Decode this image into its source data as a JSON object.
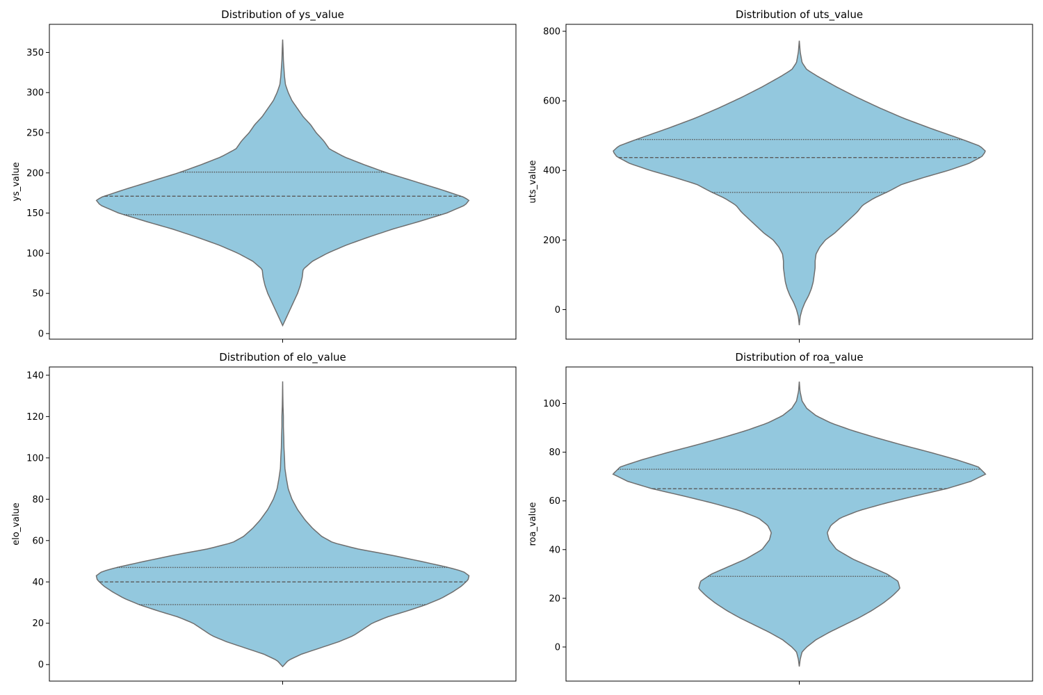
{
  "colors": {
    "violin_fill": "#93c8de",
    "violin_edge": "#6e6e6e",
    "quartile_line": "#5a5a5a",
    "axis": "#000000",
    "background": "#ffffff"
  },
  "chart_data": [
    {
      "type": "violin",
      "title": "Distribution of ys_value",
      "xlabel": "",
      "ylabel": "ys_value",
      "ylim": [
        -7,
        385
      ],
      "yticks": [
        0,
        50,
        100,
        150,
        200,
        250,
        300,
        350
      ],
      "grid": false,
      "inner": "quartile",
      "quartiles": [
        148,
        171,
        201
      ],
      "density_profile": [
        [
          10,
          0.0
        ],
        [
          20,
          0.02
        ],
        [
          30,
          0.04
        ],
        [
          40,
          0.06
        ],
        [
          50,
          0.08
        ],
        [
          60,
          0.095
        ],
        [
          70,
          0.105
        ],
        [
          80,
          0.11
        ],
        [
          90,
          0.16
        ],
        [
          100,
          0.24
        ],
        [
          110,
          0.34
        ],
        [
          120,
          0.46
        ],
        [
          130,
          0.59
        ],
        [
          140,
          0.74
        ],
        [
          150,
          0.88
        ],
        [
          160,
          0.98
        ],
        [
          166,
          1.0
        ],
        [
          170,
          0.97
        ],
        [
          180,
          0.84
        ],
        [
          190,
          0.7
        ],
        [
          200,
          0.56
        ],
        [
          210,
          0.44
        ],
        [
          220,
          0.33
        ],
        [
          230,
          0.25
        ],
        [
          240,
          0.22
        ],
        [
          250,
          0.18
        ],
        [
          260,
          0.15
        ],
        [
          270,
          0.11
        ],
        [
          280,
          0.08
        ],
        [
          290,
          0.05
        ],
        [
          300,
          0.03
        ],
        [
          310,
          0.015
        ],
        [
          320,
          0.01
        ],
        [
          330,
          0.007
        ],
        [
          340,
          0.004
        ],
        [
          355,
          0.002
        ],
        [
          366,
          0.0
        ]
      ]
    },
    {
      "type": "violin",
      "title": "Distribution of uts_value",
      "xlabel": "",
      "ylabel": "uts_value",
      "ylim": [
        -85,
        820
      ],
      "yticks": [
        0,
        200,
        400,
        600,
        800
      ],
      "grid": false,
      "inner": "quartile",
      "quartiles": [
        337,
        437,
        489
      ],
      "density_profile": [
        [
          -45,
          0.0
        ],
        [
          -20,
          0.005
        ],
        [
          0,
          0.015
        ],
        [
          20,
          0.03
        ],
        [
          40,
          0.05
        ],
        [
          60,
          0.065
        ],
        [
          80,
          0.075
        ],
        [
          100,
          0.08
        ],
        [
          120,
          0.085
        ],
        [
          140,
          0.085
        ],
        [
          160,
          0.09
        ],
        [
          180,
          0.11
        ],
        [
          200,
          0.14
        ],
        [
          220,
          0.19
        ],
        [
          240,
          0.23
        ],
        [
          260,
          0.27
        ],
        [
          280,
          0.31
        ],
        [
          300,
          0.34
        ],
        [
          320,
          0.4
        ],
        [
          340,
          0.48
        ],
        [
          360,
          0.55
        ],
        [
          380,
          0.67
        ],
        [
          400,
          0.8
        ],
        [
          420,
          0.91
        ],
        [
          440,
          0.98
        ],
        [
          455,
          1.0
        ],
        [
          470,
          0.97
        ],
        [
          490,
          0.87
        ],
        [
          520,
          0.71
        ],
        [
          550,
          0.56
        ],
        [
          580,
          0.43
        ],
        [
          610,
          0.31
        ],
        [
          640,
          0.2
        ],
        [
          670,
          0.1
        ],
        [
          690,
          0.04
        ],
        [
          710,
          0.015
        ],
        [
          740,
          0.005
        ],
        [
          773,
          0.0
        ]
      ]
    },
    {
      "type": "violin",
      "title": "Distribution of elo_value",
      "xlabel": "",
      "ylabel": "elo_value",
      "ylim": [
        -8,
        144
      ],
      "yticks": [
        0,
        20,
        40,
        60,
        80,
        100,
        120,
        140
      ],
      "grid": false,
      "inner": "quartile",
      "quartiles": [
        29,
        40,
        47
      ],
      "density_profile": [
        [
          -1,
          0.0
        ],
        [
          2,
          0.03
        ],
        [
          5,
          0.1
        ],
        [
          8,
          0.2
        ],
        [
          11,
          0.3
        ],
        [
          14,
          0.38
        ],
        [
          17,
          0.43
        ],
        [
          20,
          0.48
        ],
        [
          23,
          0.56
        ],
        [
          26,
          0.67
        ],
        [
          29,
          0.77
        ],
        [
          32,
          0.85
        ],
        [
          35,
          0.91
        ],
        [
          38,
          0.96
        ],
        [
          41,
          0.995
        ],
        [
          43,
          1.0
        ],
        [
          45,
          0.97
        ],
        [
          47,
          0.89
        ],
        [
          50,
          0.74
        ],
        [
          53,
          0.58
        ],
        [
          56,
          0.4
        ],
        [
          59,
          0.27
        ],
        [
          62,
          0.21
        ],
        [
          66,
          0.16
        ],
        [
          70,
          0.12
        ],
        [
          75,
          0.08
        ],
        [
          80,
          0.05
        ],
        [
          85,
          0.03
        ],
        [
          90,
          0.02
        ],
        [
          95,
          0.012
        ],
        [
          100,
          0.01
        ],
        [
          105,
          0.007
        ],
        [
          110,
          0.006
        ],
        [
          115,
          0.004
        ],
        [
          120,
          0.004
        ],
        [
          125,
          0.002
        ],
        [
          130,
          0.001
        ],
        [
          137,
          0.0
        ]
      ]
    },
    {
      "type": "violin",
      "title": "Distribution of roa_value",
      "xlabel": "",
      "ylabel": "roa_value",
      "ylim": [
        -14,
        115
      ],
      "yticks": [
        0,
        20,
        40,
        60,
        80,
        100
      ],
      "grid": false,
      "inner": "quartile",
      "quartiles": [
        29,
        65,
        73
      ],
      "density_profile": [
        [
          -8,
          0.0
        ],
        [
          -5,
          0.005
        ],
        [
          -2,
          0.015
        ],
        [
          0,
          0.04
        ],
        [
          3,
          0.09
        ],
        [
          6,
          0.16
        ],
        [
          9,
          0.24
        ],
        [
          12,
          0.32
        ],
        [
          15,
          0.39
        ],
        [
          18,
          0.45
        ],
        [
          21,
          0.5
        ],
        [
          24,
          0.54
        ],
        [
          27,
          0.53
        ],
        [
          30,
          0.47
        ],
        [
          33,
          0.38
        ],
        [
          36,
          0.29
        ],
        [
          40,
          0.2
        ],
        [
          44,
          0.16
        ],
        [
          47,
          0.15
        ],
        [
          50,
          0.17
        ],
        [
          53,
          0.22
        ],
        [
          56,
          0.32
        ],
        [
          59,
          0.46
        ],
        [
          62,
          0.62
        ],
        [
          65,
          0.79
        ],
        [
          68,
          0.92
        ],
        [
          71,
          1.0
        ],
        [
          74,
          0.96
        ],
        [
          77,
          0.84
        ],
        [
          80,
          0.7
        ],
        [
          83,
          0.55
        ],
        [
          86,
          0.41
        ],
        [
          89,
          0.28
        ],
        [
          92,
          0.17
        ],
        [
          95,
          0.09
        ],
        [
          98,
          0.04
        ],
        [
          101,
          0.015
        ],
        [
          105,
          0.004
        ],
        [
          109,
          0.0
        ]
      ]
    }
  ]
}
